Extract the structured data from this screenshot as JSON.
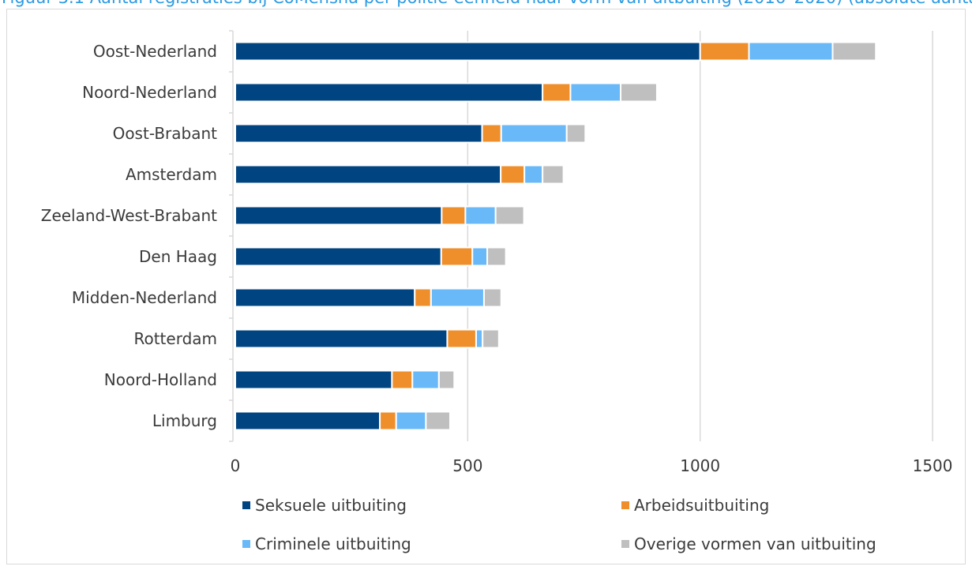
{
  "title_fragment": "Figuur 3.1 Aantal registraties bij CoMensha per politie-eenheid naar vorm van uitbuiting (2016–2020) (absolute aantallen)",
  "chart_data": {
    "type": "bar",
    "orientation": "horizontal",
    "stacked": true,
    "categories": [
      "Oost-Nederland",
      "Noord-Nederland",
      "Oost-Brabant",
      "Amsterdam",
      "Zeeland-West-Brabant",
      "Den Haag",
      "Midden-Nederland",
      "Rotterdam",
      "Noord-Holland",
      "Limburg"
    ],
    "series": [
      {
        "name": "Seksuele uitbuiting",
        "color": "#004481",
        "values": [
          1000,
          661,
          531,
          571,
          444,
          443,
          386,
          456,
          337,
          311
        ]
      },
      {
        "name": "Arbeidsuitbuiting",
        "color": "#ef8f2c",
        "values": [
          105,
          60,
          41,
          51,
          51,
          67,
          35,
          62,
          44,
          35
        ]
      },
      {
        "name": "Criminele uitbuiting",
        "color": "#69b9f8",
        "values": [
          180,
          108,
          141,
          39,
          65,
          32,
          114,
          14,
          57,
          64
        ]
      },
      {
        "name": "Overige vormen van uitbuiting",
        "color": "#bfbfbf",
        "values": [
          93,
          78,
          40,
          45,
          61,
          40,
          37,
          35,
          33,
          52
        ]
      }
    ],
    "xlim": [
      0,
      1500
    ],
    "xticks": [
      "0",
      "500",
      "1000",
      "1500"
    ],
    "grid": "vertical",
    "legend_position": "bottom"
  }
}
